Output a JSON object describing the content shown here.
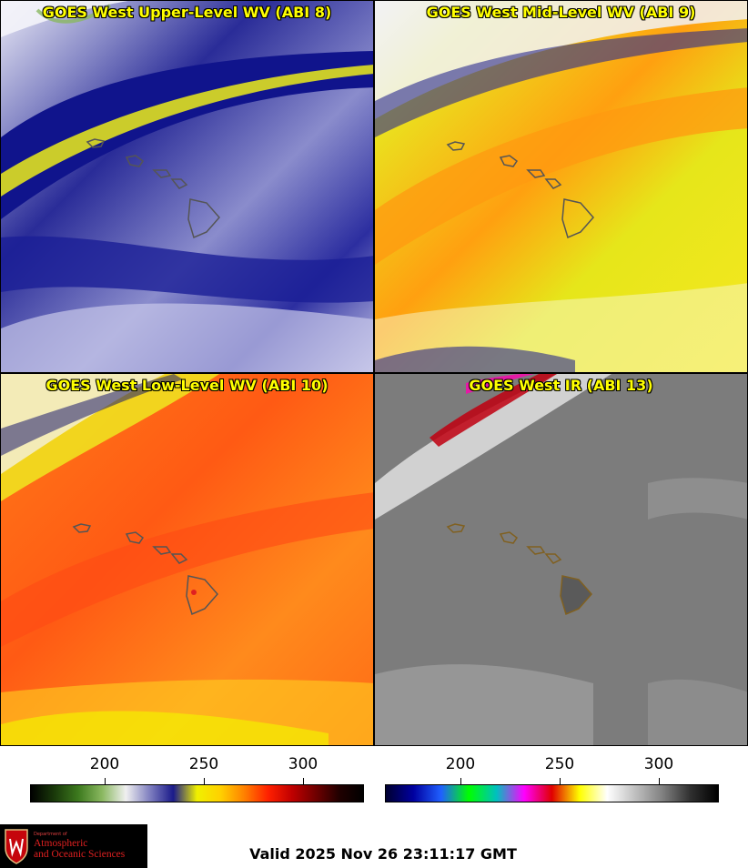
{
  "panels": [
    {
      "id": "p1",
      "title": "GOES West Upper-Level WV (ABI 8)",
      "colorscale": "upper-wv",
      "base": "#a8aadc",
      "band": "#e8e820",
      "dark": "#0c108a"
    },
    {
      "id": "p2",
      "title": "GOES West Mid-Level WV (ABI 9)",
      "colorscale": "mid-wv",
      "base": "#e4e41c",
      "band": "#ff9a10",
      "dark": "#2a2a8a"
    },
    {
      "id": "p3",
      "title": "GOES West Low-Level WV (ABI 10)",
      "colorscale": "low-wv",
      "base": "#ff8a1a",
      "band": "#ff4a14",
      "dark": "#1a1a70"
    },
    {
      "id": "p4",
      "title": "GOES West IR (ABI 13)",
      "colorscale": "ir",
      "base": "#7a7a7a",
      "band": "#8a8a8a",
      "dark": "#c0c0c0"
    }
  ],
  "colorbars": [
    {
      "name": "wv-colorbar",
      "ticks": [
        "200",
        "250",
        "300"
      ],
      "stops": [
        "#000000",
        "#1a3a0a",
        "#3d7a1e",
        "#8ab860",
        "#f0f0f0",
        "#8080c0",
        "#1a1a8a",
        "#f0f000",
        "#ffd000",
        "#ff8000",
        "#ff2000",
        "#c00000",
        "#700000",
        "#200000",
        "#000000"
      ]
    },
    {
      "name": "ir-colorbar",
      "ticks": [
        "200",
        "250",
        "300"
      ],
      "stops": [
        "#000030",
        "#0000a0",
        "#2060ff",
        "#00ff00",
        "#00c0c0",
        "#ff00ff",
        "#e00000",
        "#ffff00",
        "#ffffff",
        "#c0c0c0",
        "#808080",
        "#303030",
        "#000000"
      ]
    }
  ],
  "logo": {
    "dept": "Department of",
    "line1": "Atmospheric",
    "line2": "and Oceanic Sciences"
  },
  "valid_text": "Valid 2025 Nov 26 23:11:17 GMT"
}
